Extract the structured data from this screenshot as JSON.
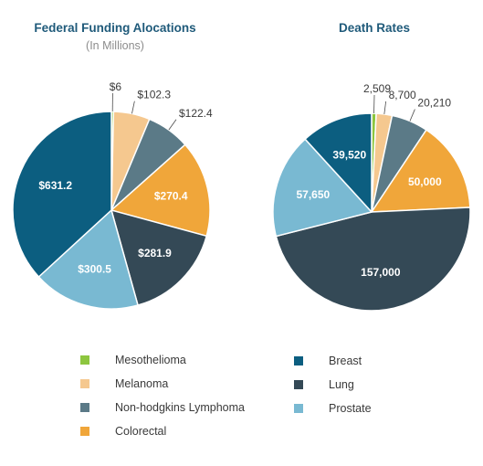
{
  "chart_data": [
    {
      "type": "pie",
      "title": "Federal Funding Alocations",
      "subtitle": "(In Millions)",
      "categories": [
        "Mesothelioma",
        "Melanoma",
        "Non-hodgkins Lymphoma",
        "Colorectal",
        "Lung",
        "Prostate",
        "Breast"
      ],
      "values": [
        6,
        102.3,
        122.4,
        270.4,
        281.9,
        300.5,
        631.2
      ],
      "labels": [
        "$6",
        "$102.3",
        "$122.4",
        "$270.4",
        "$281.9",
        "$300.5",
        "$631.2"
      ]
    },
    {
      "type": "pie",
      "title": "Death Rates",
      "categories": [
        "Mesothelioma",
        "Melanoma",
        "Non-hodgkins Lymphoma",
        "Colorectal",
        "Lung",
        "Prostate",
        "Breast"
      ],
      "values": [
        2509,
        8700,
        20210,
        50000,
        157000,
        57650,
        39520
      ],
      "labels": [
        "2,509",
        "8,700",
        "20,210",
        "50,000",
        "157,000",
        "57,650",
        "39,520"
      ]
    }
  ],
  "colors": {
    "Mesothelioma": "#8dc63f",
    "Melanoma": "#f5c88f",
    "Non-hodgkins Lymphoma": "#5b7a87",
    "Colorectal": "#f0a63a",
    "Lung": "#344956",
    "Prostate": "#79b9d2",
    "Breast": "#0c5e80"
  },
  "legend": {
    "left": [
      "Mesothelioma",
      "Melanoma",
      "Non-hodgkins Lymphoma",
      "Colorectal"
    ],
    "right": [
      "Breast",
      "Lung",
      "Prostate"
    ]
  }
}
